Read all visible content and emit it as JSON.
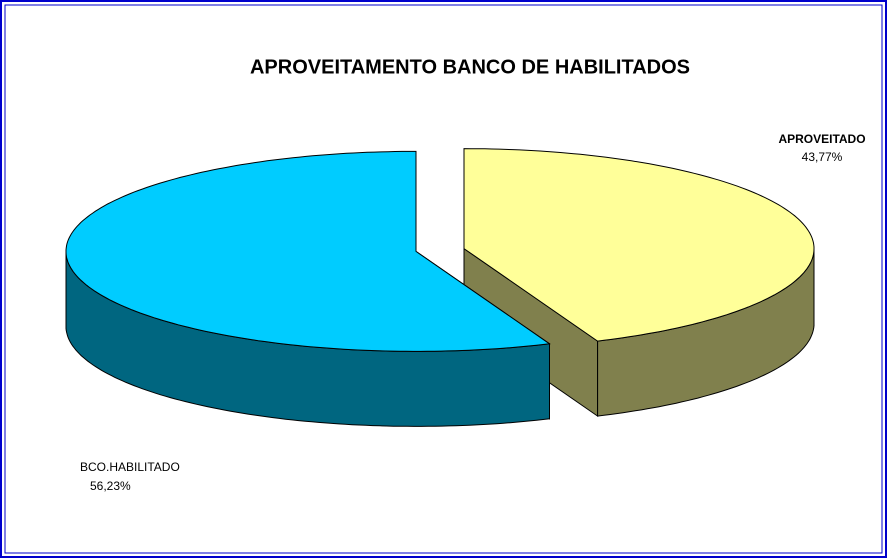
{
  "chart_data": {
    "type": "pie3d",
    "title": "APROVEITAMENTO BANCO DE HABILITADOS",
    "categories": [
      "APROVEITADO",
      "BCO.HABILITADO"
    ],
    "values": [
      43.77,
      56.23
    ],
    "value_labels": [
      "43,77%",
      "56,23%"
    ],
    "colors": [
      "#ffff99",
      "#00ccff"
    ]
  }
}
